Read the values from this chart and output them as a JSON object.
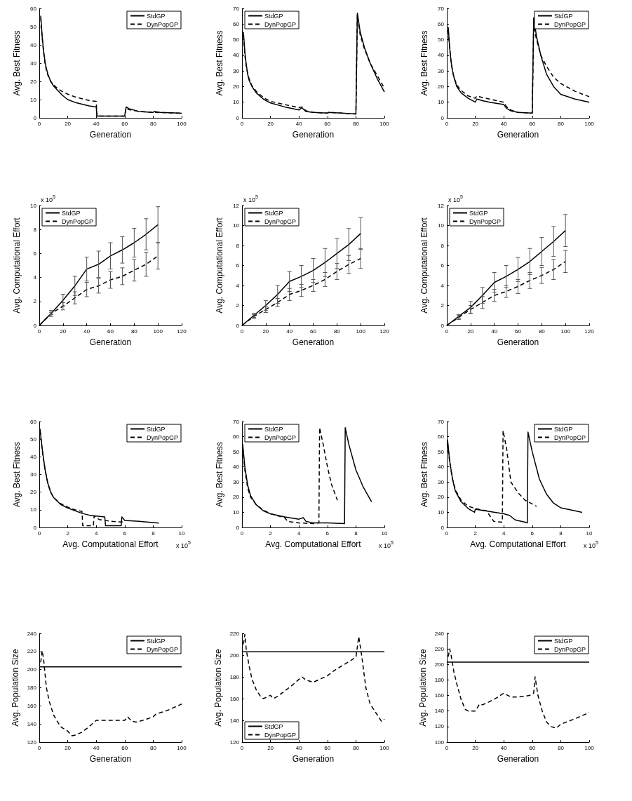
{
  "chart_data": [
    {
      "type": "line",
      "xlabel": "Generation",
      "ylabel": "Avg. Best Fitness",
      "xlim": [
        0,
        100
      ],
      "xticks": [
        0,
        20,
        40,
        60,
        80,
        100
      ],
      "ylim": [
        0,
        60
      ],
      "yticks": [
        0,
        10,
        20,
        30,
        40,
        50,
        60
      ],
      "grid": false,
      "legend": "top right",
      "series": [
        {
          "name": "StdGP",
          "color": "#000000",
          "line_style": "solid",
          "x": [
            1,
            2,
            3,
            4,
            5,
            6,
            8,
            10,
            13,
            16,
            20,
            25,
            30,
            35,
            40,
            40.5,
            60,
            61,
            63,
            70,
            80,
            81,
            85,
            100
          ],
          "values": [
            56,
            45,
            37,
            31,
            27,
            24,
            20,
            17.5,
            15,
            12.5,
            10,
            8.5,
            7.5,
            6.5,
            6,
            1,
            1,
            6,
            5,
            3.5,
            3,
            3.5,
            3,
            2.5
          ]
        },
        {
          "name": "DynPopGP",
          "color": "#000000",
          "line_style": "dashed",
          "x": [
            1,
            2,
            3,
            4,
            5,
            6,
            8,
            10,
            13,
            16,
            20,
            25,
            30,
            35,
            40,
            40.5,
            60,
            61,
            63,
            70,
            80,
            81,
            100
          ],
          "values": [
            55,
            44,
            36,
            30,
            26,
            23.5,
            20,
            18,
            16,
            14.5,
            13,
            11.5,
            10.5,
            9.5,
            9,
            1,
            1,
            5.5,
            4.5,
            3.5,
            3,
            3,
            2.5
          ]
        }
      ]
    },
    {
      "type": "line",
      "xlabel": "Generation",
      "ylabel": "Avg. Best Fitness",
      "xlim": [
        0,
        100
      ],
      "xticks": [
        0,
        20,
        40,
        60,
        80,
        100
      ],
      "ylim": [
        0,
        70
      ],
      "yticks": [
        0,
        10,
        20,
        30,
        40,
        50,
        60,
        70
      ],
      "grid": false,
      "legend": "top left",
      "series": [
        {
          "name": "StdGP",
          "color": "#000000",
          "line_style": "solid",
          "x": [
            1,
            2,
            3,
            4,
            5,
            7,
            10,
            15,
            20,
            30,
            40,
            42,
            45,
            50,
            60,
            61,
            70,
            80,
            81,
            83,
            86,
            90,
            95,
            100
          ],
          "values": [
            55,
            42,
            34,
            28,
            24,
            20,
            16,
            12,
            9.5,
            7,
            5,
            6.5,
            4,
            3.5,
            3,
            3.5,
            3,
            2.5,
            67,
            55,
            45,
            35,
            25,
            16.5
          ]
        },
        {
          "name": "DynPopGP",
          "color": "#000000",
          "line_style": "dashed",
          "x": [
            1,
            2,
            3,
            4,
            5,
            7,
            10,
            15,
            20,
            30,
            40,
            42,
            45,
            50,
            60,
            61,
            70,
            80,
            81,
            83,
            86,
            90,
            95,
            100
          ],
          "values": [
            53,
            40,
            33,
            28,
            25,
            20.5,
            17,
            13,
            10.5,
            8.5,
            6.5,
            7,
            4.5,
            3.5,
            3,
            3.5,
            3,
            2.5,
            66,
            53,
            44,
            35,
            27,
            19
          ]
        }
      ]
    },
    {
      "type": "line",
      "xlabel": "Generation",
      "ylabel": "Avg. Best Fitness",
      "xlim": [
        0,
        100
      ],
      "xticks": [
        0,
        20,
        40,
        60,
        80,
        100
      ],
      "ylim": [
        0,
        70
      ],
      "yticks": [
        0,
        10,
        20,
        30,
        40,
        50,
        60,
        70
      ],
      "grid": false,
      "legend": "top right",
      "series": [
        {
          "name": "StdGP",
          "color": "#000000",
          "line_style": "solid",
          "x": [
            1,
            2,
            3,
            4,
            5,
            7,
            10,
            15,
            20,
            21,
            25,
            30,
            40,
            42,
            45,
            50,
            60,
            61,
            63,
            66,
            70,
            75,
            80,
            90,
            100
          ],
          "values": [
            58,
            45,
            36,
            30,
            26,
            20,
            16,
            12.5,
            10,
            12,
            11,
            10,
            8.5,
            6,
            4.5,
            3.5,
            3,
            64,
            52,
            40,
            28,
            20,
            15,
            12,
            10
          ]
        },
        {
          "name": "DynPopGP",
          "color": "#000000",
          "line_style": "dashed",
          "x": [
            1,
            2,
            3,
            4,
            5,
            7,
            10,
            15,
            20,
            21,
            25,
            30,
            40,
            42,
            45,
            50,
            60,
            61,
            63,
            66,
            70,
            75,
            80,
            90,
            100
          ],
          "values": [
            56,
            44,
            36,
            30,
            26,
            21,
            17.5,
            14,
            12.5,
            14,
            13,
            12,
            10,
            7,
            5,
            3.5,
            3,
            59,
            50,
            40,
            33,
            26,
            22,
            17,
            13.5
          ]
        }
      ]
    },
    {
      "type": "line",
      "xlabel": "Generation",
      "ylabel": "Avg. Computational Effort",
      "annotations": [
        "x 10$^{5}$"
      ],
      "xlim": [
        0,
        120
      ],
      "xticks": [
        0,
        20,
        40,
        60,
        80,
        100,
        120
      ],
      "ylim": [
        0,
        10
      ],
      "yticks": [
        0,
        2,
        4,
        6,
        8,
        10
      ],
      "grid": false,
      "legend": "top left",
      "series": [
        {
          "name": "StdGP",
          "color": "#000000",
          "line_style": "solid",
          "x": [
            0,
            10,
            20,
            30,
            40,
            50,
            60,
            70,
            80,
            90,
            100
          ],
          "values": [
            0,
            1,
            2.1,
            3.3,
            4.7,
            5.1,
            5.8,
            6.3,
            6.9,
            7.6,
            8.4
          ],
          "errors": [
            null,
            0.25,
            0.5,
            0.8,
            1,
            1.1,
            1.1,
            1.1,
            1.2,
            1.3,
            1.5
          ]
        },
        {
          "name": "DynPopGP",
          "color": "#000000",
          "line_style": "dashed",
          "x": [
            0,
            10,
            20,
            30,
            40,
            50,
            60,
            70,
            80,
            90,
            100
          ],
          "values": [
            0,
            1,
            1.6,
            2.3,
            3,
            3.3,
            3.8,
            4.1,
            4.6,
            5.1,
            5.8
          ],
          "errors": [
            null,
            0.1,
            0.3,
            0.5,
            0.6,
            0.6,
            0.7,
            0.7,
            0.9,
            1,
            1.1
          ]
        }
      ]
    },
    {
      "type": "line",
      "xlabel": "Generation",
      "ylabel": "Avg. Computational Effort",
      "annotations": [
        "x 10$^{5}$"
      ],
      "xlim": [
        0,
        120
      ],
      "xticks": [
        0,
        20,
        40,
        60,
        80,
        100,
        120
      ],
      "ylim": [
        0,
        12
      ],
      "yticks": [
        0,
        2,
        4,
        6,
        8,
        10,
        12
      ],
      "grid": false,
      "legend": "top left",
      "series": [
        {
          "name": "StdGP",
          "color": "#000000",
          "line_style": "solid",
          "x": [
            0,
            10,
            20,
            30,
            40,
            50,
            60,
            70,
            80,
            90,
            100
          ],
          "values": [
            0,
            1,
            2,
            3.1,
            4.4,
            4.9,
            5.5,
            6.3,
            7.2,
            8.1,
            9.2
          ],
          "errors": [
            null,
            0.2,
            0.5,
            0.9,
            1,
            1.1,
            1.2,
            1.4,
            1.5,
            1.6,
            1.6
          ]
        },
        {
          "name": "DynPopGP",
          "color": "#000000",
          "line_style": "dashed",
          "x": [
            0,
            10,
            20,
            30,
            40,
            50,
            60,
            70,
            80,
            90,
            100
          ],
          "values": [
            0,
            0.9,
            1.6,
            2.3,
            3.1,
            3.5,
            4,
            4.6,
            5.4,
            6.1,
            6.7
          ],
          "errors": [
            null,
            0.2,
            0.3,
            0.4,
            0.6,
            0.6,
            0.6,
            0.7,
            0.8,
            0.9,
            1
          ]
        }
      ]
    },
    {
      "type": "line",
      "xlabel": "Generation",
      "ylabel": "Avg. Computational Effort",
      "annotations": [
        "x 10$^{5}$"
      ],
      "xlim": [
        0,
        120
      ],
      "xticks": [
        0,
        20,
        40,
        60,
        80,
        100,
        120
      ],
      "ylim": [
        0,
        12
      ],
      "yticks": [
        0,
        2,
        4,
        6,
        8,
        10,
        12
      ],
      "grid": false,
      "legend": "top left",
      "series": [
        {
          "name": "StdGP",
          "color": "#000000",
          "line_style": "solid",
          "x": [
            0,
            10,
            20,
            30,
            40,
            50,
            60,
            70,
            80,
            90,
            100
          ],
          "values": [
            0,
            0.9,
            1.8,
            3,
            4.3,
            4.9,
            5.6,
            6.4,
            7.4,
            8.4,
            9.5
          ],
          "errors": [
            null,
            0.2,
            0.6,
            0.8,
            1,
            1.1,
            1.2,
            1.3,
            1.4,
            1.5,
            1.6
          ]
        },
        {
          "name": "DynPopGP",
          "color": "#000000",
          "line_style": "dashed",
          "x": [
            0,
            10,
            20,
            30,
            40,
            50,
            60,
            70,
            80,
            90,
            100
          ],
          "values": [
            0,
            0.8,
            1.6,
            2.3,
            3,
            3.4,
            3.9,
            4.5,
            5,
            5.6,
            6.4
          ],
          "errors": [
            null,
            0.2,
            0.4,
            0.6,
            0.6,
            0.6,
            0.7,
            0.8,
            0.8,
            1,
            1.1
          ]
        }
      ]
    },
    {
      "type": "line",
      "xlabel": "Avg. Computational Effort",
      "ylabel": "Avg. Best Fitness",
      "annotations": [
        "x 10$^{5}$"
      ],
      "xlim": [
        0,
        10
      ],
      "xticks": [
        0,
        2,
        4,
        6,
        8,
        10
      ],
      "ylim": [
        0,
        60
      ],
      "yticks": [
        0,
        10,
        20,
        30,
        40,
        50,
        60
      ],
      "grid": false,
      "legend": "top right",
      "series": [
        {
          "name": "StdGP",
          "color": "#000000",
          "line_style": "solid",
          "x": [
            0.05,
            0.2,
            0.4,
            0.6,
            0.8,
            1,
            1.5,
            2,
            2.5,
            3,
            3.5,
            4,
            4.6,
            4.65,
            5.75,
            5.8,
            6,
            7,
            8.4
          ],
          "values": [
            56,
            45,
            33,
            25,
            20,
            17,
            13,
            11,
            9.5,
            8,
            7,
            6.5,
            6,
            1,
            1,
            6,
            4,
            3.5,
            2.5
          ]
        },
        {
          "name": "DynPopGP",
          "color": "#000000",
          "line_style": "dashed",
          "x": [
            0.05,
            0.2,
            0.4,
            0.6,
            0.8,
            1,
            1.5,
            2,
            2.5,
            3,
            3.05,
            3.8,
            3.85,
            4.2,
            5,
            6
          ],
          "values": [
            55,
            44,
            33,
            25,
            20,
            17,
            13.5,
            11.5,
            10,
            9,
            1,
            1,
            6.5,
            4.5,
            3.5,
            3
          ]
        }
      ]
    },
    {
      "type": "line",
      "xlabel": "Avg. Computational Effort",
      "ylabel": "Avg. Best Fitness",
      "annotations": [
        "x 10$^{5}$"
      ],
      "xlim": [
        0,
        10
      ],
      "xticks": [
        0,
        2,
        4,
        6,
        8,
        10
      ],
      "ylim": [
        0,
        70
      ],
      "yticks": [
        0,
        10,
        20,
        30,
        40,
        50,
        60,
        70
      ],
      "grid": false,
      "legend": "top left",
      "series": [
        {
          "name": "StdGP",
          "color": "#000000",
          "line_style": "solid",
          "x": [
            0.05,
            0.2,
            0.4,
            0.6,
            1,
            1.5,
            2,
            3,
            4,
            4.3,
            4.5,
            5,
            6,
            7.2,
            7.25,
            7.5,
            8,
            8.5,
            9.1
          ],
          "values": [
            55,
            40,
            28,
            21,
            15,
            11,
            9,
            7,
            5.5,
            6.5,
            4,
            3,
            3,
            2.5,
            66,
            55,
            38,
            27,
            17
          ]
        },
        {
          "name": "DynPopGP",
          "color": "#000000",
          "line_style": "dashed",
          "x": [
            0.05,
            0.2,
            0.4,
            0.6,
            1,
            1.5,
            2,
            3,
            3.2,
            4,
            5,
            5.4,
            5.45,
            5.7,
            6,
            6.3,
            6.7
          ],
          "values": [
            53,
            38,
            26,
            20,
            15,
            11.5,
            9,
            6.5,
            4,
            3,
            2.5,
            3,
            66,
            55,
            40,
            28,
            18
          ]
        }
      ]
    },
    {
      "type": "line",
      "xlabel": "Avg. Computational Effort",
      "ylabel": "Avg. Best Fitness",
      "annotations": [
        "x 10$^{5}$"
      ],
      "xlim": [
        0,
        10
      ],
      "xticks": [
        0,
        2,
        4,
        6,
        8,
        10
      ],
      "ylim": [
        0,
        70
      ],
      "yticks": [
        0,
        10,
        20,
        30,
        40,
        50,
        60,
        70
      ],
      "grid": false,
      "legend": "top right",
      "series": [
        {
          "name": "StdGP",
          "color": "#000000",
          "line_style": "solid",
          "x": [
            0.05,
            0.2,
            0.4,
            0.6,
            1,
            1.5,
            1.95,
            2,
            3,
            4,
            4.4,
            4.8,
            5.5,
            5.65,
            5.7,
            6,
            6.5,
            7,
            7.5,
            8,
            9,
            9.5
          ],
          "values": [
            58,
            44,
            32,
            24,
            17,
            12.5,
            10,
            12,
            10.5,
            9,
            8,
            5,
            3.5,
            3,
            63,
            50,
            32,
            22,
            16,
            13,
            11,
            10
          ]
        },
        {
          "name": "DynPopGP",
          "color": "#000000",
          "line_style": "dashed",
          "x": [
            0.05,
            0.2,
            0.4,
            0.6,
            1,
            1.5,
            2,
            2.8,
            3,
            3.3,
            3.9,
            3.95,
            4.2,
            4.5,
            5,
            5.5,
            6.3
          ],
          "values": [
            56,
            43,
            32,
            25,
            18,
            14,
            12.5,
            11,
            8,
            4,
            3.5,
            64,
            52,
            30,
            23,
            18,
            14
          ]
        }
      ]
    },
    {
      "type": "line",
      "xlabel": "Generation",
      "ylabel": "Avg. Population Size",
      "xlim": [
        0,
        100
      ],
      "xticks": [
        0,
        20,
        40,
        60,
        80,
        100
      ],
      "ylim": [
        120,
        240
      ],
      "yticks": [
        120,
        140,
        160,
        180,
        200,
        220,
        240
      ],
      "grid": false,
      "legend": "top right",
      "series": [
        {
          "name": "StdGP",
          "color": "#000000",
          "line_style": "solid",
          "x": [
            0,
            100
          ],
          "values": [
            203,
            203
          ]
        },
        {
          "name": "DynPopGP",
          "color": "#000000",
          "line_style": "dashed",
          "x": [
            1,
            2,
            3,
            5,
            7,
            10,
            13,
            15,
            20,
            23,
            26,
            30,
            35,
            40,
            60,
            62,
            65,
            68,
            75,
            80,
            82,
            90,
            100
          ],
          "values": [
            208,
            221,
            212,
            180,
            165,
            150,
            142,
            137,
            132,
            127,
            128,
            131,
            137,
            144,
            144,
            148,
            143,
            142,
            145,
            148,
            151,
            155,
            162
          ]
        }
      ]
    },
    {
      "type": "line",
      "xlabel": "Generation",
      "ylabel": "Avg. Population Size",
      "xlim": [
        0,
        100
      ],
      "xticks": [
        0,
        20,
        40,
        60,
        80,
        100
      ],
      "ylim": [
        120,
        220
      ],
      "yticks": [
        120,
        140,
        160,
        180,
        200,
        220
      ],
      "grid": false,
      "legend": "bottom left",
      "series": [
        {
          "name": "StdGP",
          "color": "#000000",
          "line_style": "solid",
          "x": [
            0,
            100
          ],
          "values": [
            203,
            203
          ]
        },
        {
          "name": "DynPopGP",
          "color": "#000000",
          "line_style": "dashed",
          "x": [
            1,
            2,
            3,
            5,
            7,
            10,
            13,
            15,
            20,
            22,
            25,
            30,
            35,
            42,
            45,
            50,
            60,
            65,
            80,
            82,
            84,
            87,
            90,
            95,
            98,
            100
          ],
          "values": [
            210,
            219,
            205,
            190,
            178,
            168,
            162,
            160,
            163,
            160,
            162,
            167,
            172,
            180,
            177,
            175,
            181,
            186,
            198,
            217,
            200,
            170,
            155,
            145,
            139,
            141
          ]
        }
      ]
    },
    {
      "type": "line",
      "xlabel": "Generation",
      "ylabel": "Avg. Population Size",
      "xlim": [
        0,
        100
      ],
      "xticks": [
        0,
        20,
        40,
        60,
        80,
        100
      ],
      "ylim": [
        100,
        240
      ],
      "yticks": [
        100,
        120,
        140,
        160,
        180,
        200,
        220,
        240
      ],
      "grid": false,
      "legend": "top right",
      "series": [
        {
          "name": "StdGP",
          "color": "#000000",
          "line_style": "solid",
          "x": [
            0,
            100
          ],
          "values": [
            203,
            203
          ]
        },
        {
          "name": "DynPopGP",
          "color": "#000000",
          "line_style": "dashed",
          "x": [
            1,
            2,
            3,
            5,
            7,
            10,
            13,
            15,
            20,
            23,
            25,
            30,
            35,
            40,
            45,
            50,
            58,
            61,
            62,
            64,
            67,
            70,
            73,
            77,
            80,
            90,
            100
          ],
          "values": [
            210,
            220,
            212,
            190,
            175,
            155,
            142,
            140,
            140,
            149,
            148,
            152,
            157,
            163,
            158,
            158,
            160,
            163,
            184,
            160,
            140,
            126,
            120,
            118,
            123,
            130,
            138
          ]
        }
      ]
    }
  ]
}
